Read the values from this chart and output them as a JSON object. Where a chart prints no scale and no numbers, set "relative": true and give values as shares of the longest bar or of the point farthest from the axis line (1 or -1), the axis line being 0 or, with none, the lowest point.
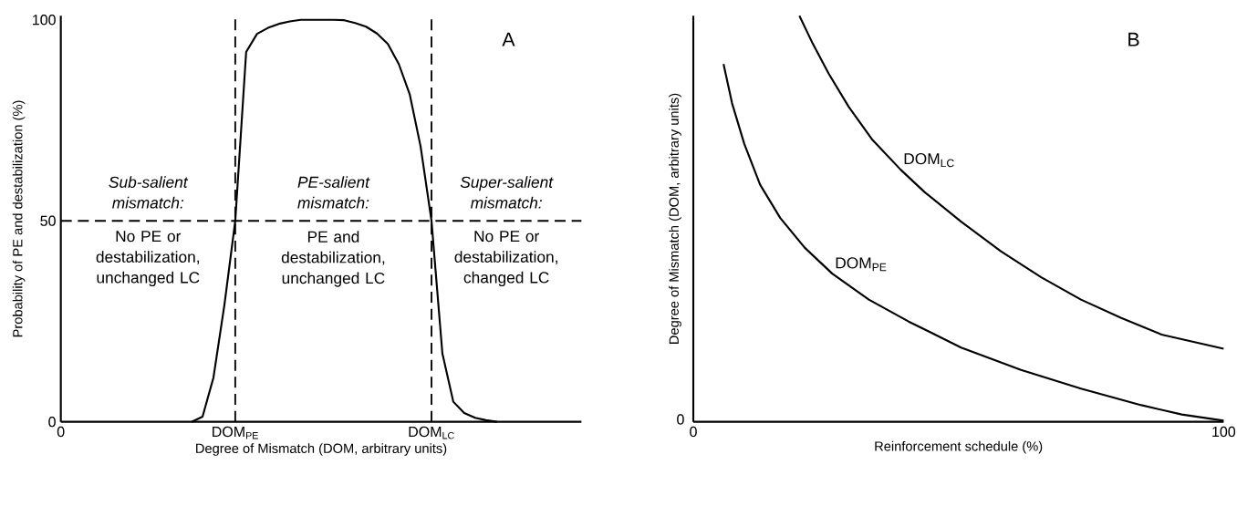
{
  "chart_data": [
    {
      "type": "line",
      "title": "A",
      "xlabel": "Degree of Mismatch (DOM, arbitrary units)",
      "ylabel": "Probability of PE and destabilization (%)",
      "categories": [
        "0",
        null,
        null,
        null,
        null,
        null,
        null,
        null,
        null,
        null,
        null,
        null,
        null,
        null,
        null,
        null,
        "DOM$_{PE}$",
        null,
        null,
        null,
        null,
        null,
        null,
        null,
        null,
        null,
        null,
        null,
        null,
        null,
        null,
        null,
        null,
        null,
        "DOM$_{LC}$",
        null,
        null,
        null,
        null,
        null,
        null,
        null,
        null,
        null,
        null,
        null,
        null,
        null
      ],
      "ylim": [
        0,
        101
      ],
      "yticks": [
        0,
        50,
        100
      ],
      "series": [
        {
          "color": "#000000",
          "values": [
            null,
            null,
            null,
            null,
            null,
            null,
            null,
            null,
            null,
            null,
            null,
            null,
            0,
            1.3,
            11,
            29,
            50,
            92,
            96.5,
            98,
            99,
            99.6,
            100,
            100,
            100,
            100,
            99.9,
            99.2,
            98.3,
            96.6,
            94,
            89,
            81.5,
            68.5,
            50,
            17,
            5,
            2.2,
            1,
            0.4,
            0,
            null,
            null,
            null,
            null,
            null,
            null,
            null
          ]
        }
      ],
      "ref_lines": [
        {
          "axis": "x",
          "value": "DOM$_{PE}$",
          "color": "#000000",
          "line_style": "dashed"
        },
        {
          "axis": "x",
          "value": "DOM$_{LC}$",
          "color": "#000000",
          "line_style": "dashed"
        },
        {
          "axis": "y",
          "value": 50,
          "color": "#000000",
          "line_style": "dashed"
        }
      ],
      "annotations": [
        "Sub-salient mismatch:",
        "No PE or destabilization, unchanged LC",
        "PE-salient mismatch:",
        "PE and destabilization, unchanged LC",
        "Super-salient mismatch:",
        "No PE or destabilization, changed LC"
      ],
      "marker": "none",
      "line_style": "solid"
    },
    {
      "type": "line",
      "title": "B",
      "xlabel": "Reinforcement schedule (%)",
      "ylabel": "Degree of Mismatch (DOM, arbitrary units)",
      "relative": true,
      "xlim": [
        0,
        100
      ],
      "xticks": [
        0,
        100
      ],
      "annotations": [
        "0"
      ],
      "series": [
        {
          "name": "DOM$_{PE}$",
          "color": "#000000",
          "x": [
            5.7,
            7.3,
            9.6,
            12.6,
            16.4,
            21.0,
            26.2,
            33.1,
            40.6,
            50.5,
            61.8,
            73.1,
            84.5,
            92.1,
            100
          ],
          "values": [
            0.881,
            0.785,
            0.685,
            0.584,
            0.502,
            0.429,
            0.365,
            0.301,
            0.247,
            0.183,
            0.128,
            0.082,
            0.041,
            0.018,
            0.003
          ]
        },
        {
          "name": "DOM$_{LC}$",
          "color": "#000000",
          "x": [
            20.0,
            22.5,
            25.5,
            29.3,
            33.8,
            39.1,
            43.6,
            50.5,
            58.0,
            65.6,
            73.1,
            80.7,
            88.3,
            100
          ],
          "values": [
            1.0,
            0.932,
            0.858,
            0.776,
            0.694,
            0.621,
            0.566,
            0.493,
            0.42,
            0.356,
            0.301,
            0.256,
            0.215,
            0.18
          ]
        }
      ],
      "marker": "none",
      "line_style": "solid"
    }
  ]
}
